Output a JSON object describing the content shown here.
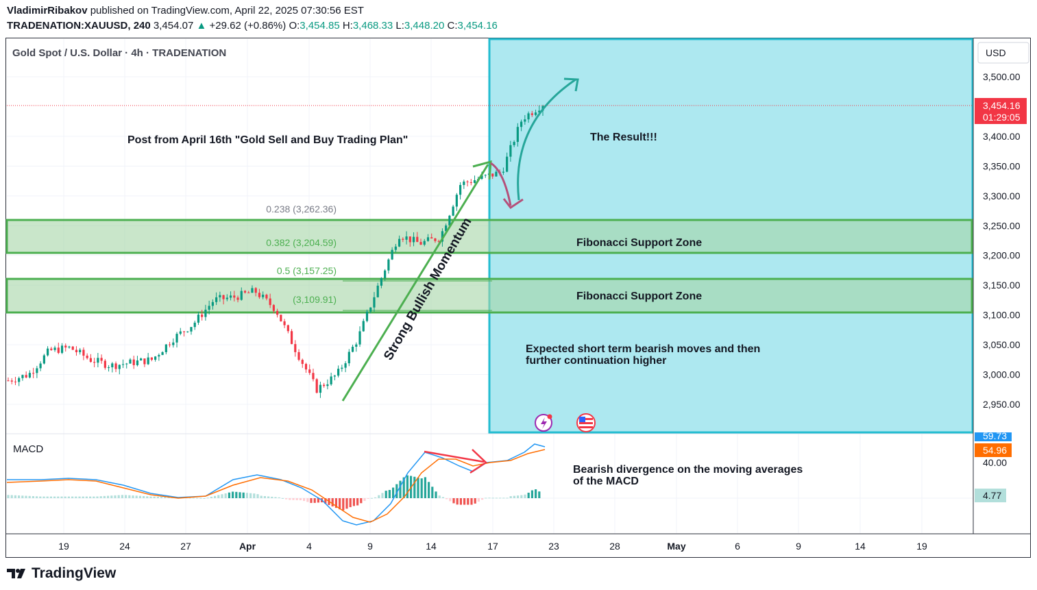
{
  "publish_line": {
    "author": "VladimirRibakov",
    "text": "published on TradingView.com, April 22, 2025 07:30:56 EST"
  },
  "ticker_line": {
    "symbol": "TRADENATION:XAUUSD, 240",
    "last": "3,454.07",
    "change": "+29.62 (+0.86%)",
    "o_label": "O:",
    "o": "3,454.85",
    "h_label": "H:",
    "h": "3,468.33",
    "l_label": "L:",
    "l": "3,448.20",
    "c_label": "C:",
    "c": "3,454.16"
  },
  "pane_title": "Gold Spot / U.S. Dollar · 4h · TRADENATION",
  "currency": "USD",
  "price_tag": {
    "price": "3,454.16",
    "countdown": "01:29:05"
  },
  "annotations": {
    "post": "Post from April 16th \"Gold Sell and Buy Trading Plan\"",
    "result": "The Result!!!",
    "zone1": "Fibonacci Support Zone",
    "zone2": "Fibonacci Support Zone",
    "momentum": "Strong Bullish Momentum",
    "expected_1": "Expected short term bearish moves and then",
    "expected_2": "further continuation higher",
    "divergence_1": "Bearish divergence on the moving averages",
    "divergence_2": "of the MACD"
  },
  "fib_levels": [
    {
      "label": "0.238 (3,262.36)",
      "value": 3262.36,
      "color": "#787b86"
    },
    {
      "label": "0.382 (3,204.59)",
      "value": 3204.59,
      "color": "#4caf50"
    },
    {
      "label": "0.5 (3,157.25)",
      "value": 3157.25,
      "color": "#4caf50"
    },
    {
      "label": "(3,109.91)",
      "value": 3109.91,
      "color": "#4caf50"
    }
  ],
  "macd": {
    "title": "MACD",
    "tag_macd": "59.73",
    "tag_signal": "54.96",
    "tag_hist": "4.77",
    "axis_label": "40.00"
  },
  "colors": {
    "up": "#089981",
    "down": "#f23645",
    "result_box": "#ade8f0",
    "result_border": "#22bcd0",
    "zone_fill": "#c8e6c9",
    "zone_border": "#4caf50",
    "macd_line": "#2196f3",
    "signal_line": "#ff6d00"
  },
  "chart_data": {
    "type": "candlestick",
    "symbol": "XAUUSD",
    "y_ticks": [
      "2,950.00",
      "3,000.00",
      "3,050.00",
      "3,100.00",
      "3,150.00",
      "3,200.00",
      "3,250.00",
      "3,300.00",
      "3,350.00",
      "3,400.00",
      "3,500.00"
    ],
    "ylim": [
      2900,
      3540
    ],
    "x_ticks": [
      "19",
      "24",
      "27",
      "Apr",
      "4",
      "9",
      "14",
      "17",
      "23",
      "28",
      "May",
      "6",
      "9",
      "14",
      "19"
    ],
    "close_path": [
      {
        "x": "Mar 17",
        "y": 2990
      },
      {
        "x": "Mar 18",
        "y": 3000
      },
      {
        "x": "Mar 19",
        "y": 3040
      },
      {
        "x": "Mar 20",
        "y": 3045
      },
      {
        "x": "Mar 21",
        "y": 3025
      },
      {
        "x": "Mar 24",
        "y": 3015
      },
      {
        "x": "Mar 25",
        "y": 3020
      },
      {
        "x": "Mar 26",
        "y": 3025
      },
      {
        "x": "Mar 27",
        "y": 3060
      },
      {
        "x": "Mar 28",
        "y": 3085
      },
      {
        "x": "Mar 31",
        "y": 3125
      },
      {
        "x": "Apr 1",
        "y": 3130
      },
      {
        "x": "Apr 2",
        "y": 3140
      },
      {
        "x": "Apr 3",
        "y": 3110
      },
      {
        "x": "Apr 4",
        "y": 3040
      },
      {
        "x": "Apr 7",
        "y": 2975
      },
      {
        "x": "Apr 8",
        "y": 3000
      },
      {
        "x": "Apr 9",
        "y": 3060
      },
      {
        "x": "Apr 10",
        "y": 3150
      },
      {
        "x": "Apr 11",
        "y": 3235
      },
      {
        "x": "Apr 14",
        "y": 3220
      },
      {
        "x": "Apr 15",
        "y": 3230
      },
      {
        "x": "Apr 16",
        "y": 3320
      },
      {
        "x": "Apr 17",
        "y": 3330
      },
      {
        "x": "Apr 18",
        "y": 3340
      },
      {
        "x": "Apr 21",
        "y": 3430
      },
      {
        "x": "Apr 22",
        "y": 3454.16
      }
    ]
  }
}
